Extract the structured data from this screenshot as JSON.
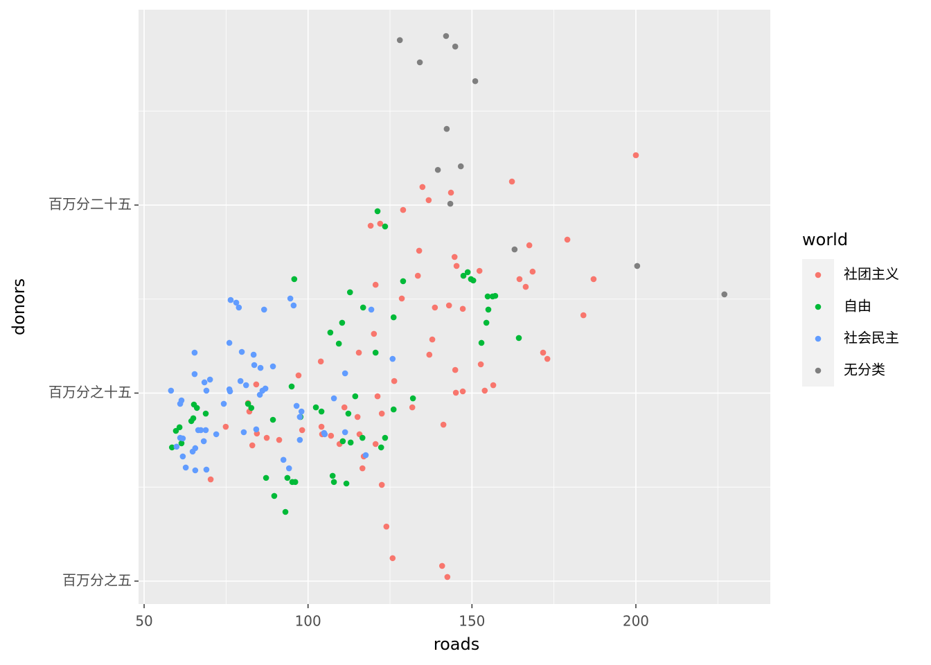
{
  "chart_data": {
    "type": "scatter",
    "x_label": "roads",
    "y_label": "donors",
    "legend_title": "world",
    "legend_position": "right",
    "grid": true,
    "xlim": [
      48.3,
      241.0
    ],
    "ylim": [
      3.78,
      35.39
    ],
    "xticks": [
      50,
      100,
      150,
      200
    ],
    "yticks": [
      {
        "value": 5,
        "label": "百万分之五"
      },
      {
        "value": 15,
        "label": "百万分之十五"
      },
      {
        "value": 25,
        "label": "百万分二十五"
      }
    ],
    "series": [
      {
        "name": "社团主义",
        "color": "#F8766D",
        "x": [
          200.0,
          162.2,
          134.9,
          143.6,
          136.8,
          129.0,
          119.1,
          122.0,
          133.9,
          144.7,
          145.3,
          152.3,
          168.5,
          167.5,
          179.1,
          133.5,
          120.6,
          164.5,
          166.4,
          187.1,
          128.6,
          138.7,
          143.0,
          147.2,
          184.0,
          137.9,
          120.1,
          115.5,
          137.0,
          103.9,
          152.7,
          171.7,
          173.0,
          126.3,
          144.9,
          97.1,
          156.5,
          84.2,
          153.9,
          147.2,
          145.1,
          121.2,
          131.8,
          81.7,
          82.1,
          111.1,
          115.1,
          122.5,
          141.3,
          74.9,
          104.1,
          104.3,
          98.2,
          107.0,
          84.4,
          87.4,
          91.2,
          109.6,
          115.7,
          120.6,
          83.0,
          117.0,
          116.6,
          122.5,
          70.3,
          123.9,
          125.8,
          140.9,
          142.5
        ],
        "values": [
          27.65,
          26.25,
          25.96,
          25.66,
          25.26,
          24.74,
          23.9,
          24.01,
          22.57,
          22.24,
          21.76,
          21.5,
          21.46,
          22.86,
          23.16,
          21.24,
          20.76,
          21.06,
          20.65,
          21.06,
          20.03,
          19.55,
          19.66,
          19.48,
          19.14,
          17.85,
          18.15,
          17.15,
          17.04,
          16.68,
          16.53,
          17.15,
          16.82,
          15.64,
          16.23,
          15.94,
          15.42,
          15.46,
          15.13,
          15.09,
          15.02,
          14.83,
          14.24,
          14.47,
          14.02,
          14.24,
          13.73,
          13.91,
          13.32,
          13.21,
          13.21,
          12.81,
          13.03,
          12.73,
          12.85,
          12.62,
          12.51,
          12.29,
          12.81,
          12.29,
          12.22,
          11.63,
          11.0,
          10.12,
          10.41,
          7.9,
          6.22,
          5.81,
          5.22
        ]
      },
      {
        "name": "自由",
        "color": "#00BA38",
        "x": [
          121.2,
          123.5,
          95.8,
          129.0,
          112.8,
          148.7,
          147.4,
          149.7,
          150.4,
          154.8,
          156.3,
          157.1,
          116.8,
          155.0,
          126.1,
          110.4,
          154.4,
          106.8,
          109.4,
          152.9,
          164.3,
          120.6,
          95.0,
          132.0,
          114.4,
          102.4,
          104.1,
          126.1,
          112.3,
          97.7,
          89.3,
          59.7,
          60.8,
          64.4,
          65.0,
          66.1,
          65.2,
          68.8,
          81.7,
          82.7,
          110.6,
          113.0,
          116.6,
          123.5,
          122.3,
          61.4,
          58.5,
          107.5,
          107.9,
          111.7,
          87.2,
          93.7,
          95.2,
          96.1,
          89.7,
          93.1
        ],
        "values": [
          24.67,
          23.86,
          21.06,
          20.95,
          20.36,
          21.43,
          21.24,
          21.06,
          20.99,
          20.14,
          20.14,
          20.17,
          19.55,
          19.44,
          19.03,
          18.74,
          18.74,
          18.22,
          17.63,
          17.67,
          17.93,
          17.15,
          15.35,
          14.72,
          14.83,
          14.24,
          14.02,
          14.13,
          13.91,
          13.73,
          13.58,
          12.99,
          13.18,
          13.51,
          13.66,
          14.21,
          14.39,
          13.91,
          14.43,
          14.21,
          12.44,
          12.37,
          12.62,
          12.62,
          12.11,
          12.33,
          12.11,
          10.6,
          10.27,
          10.19,
          10.49,
          10.49,
          10.27,
          10.27,
          9.53,
          8.68
        ]
      },
      {
        "name": "社会民主",
        "color": "#619CFF",
        "x": [
          76.4,
          78.1,
          78.9,
          86.6,
          94.6,
          95.6,
          119.3,
          76.0,
          65.4,
          79.8,
          83.4,
          83.6,
          85.5,
          89.3,
          125.8,
          65.4,
          111.3,
          70.1,
          68.4,
          79.4,
          81.1,
          58.2,
          76.0,
          76.2,
          69.0,
          87.0,
          86.1,
          85.3,
          61.4,
          61.0,
          74.3,
          96.5,
          107.9,
          98.0,
          97.5,
          67.3,
          66.5,
          68.8,
          72.0,
          80.4,
          84.2,
          104.9,
          111.3,
          105.1,
          61.0,
          61.8,
          68.2,
          59.9,
          65.6,
          64.8,
          61.8,
          117.6,
          92.5,
          94.2,
          62.7,
          65.6,
          69.0,
          97.5
        ],
        "values": [
          19.95,
          19.81,
          19.55,
          19.44,
          20.03,
          19.66,
          19.44,
          17.67,
          17.15,
          17.19,
          17.04,
          16.49,
          16.34,
          16.42,
          16.82,
          16.01,
          16.05,
          15.72,
          15.57,
          15.64,
          15.42,
          15.13,
          15.2,
          15.09,
          15.13,
          15.24,
          15.13,
          14.91,
          14.61,
          14.43,
          14.43,
          14.32,
          14.72,
          14.02,
          13.73,
          13.03,
          13.03,
          13.03,
          12.81,
          12.92,
          13.07,
          12.88,
          12.92,
          12.81,
          12.62,
          12.59,
          12.44,
          12.15,
          12.07,
          11.89,
          11.63,
          11.7,
          11.45,
          11.0,
          11.04,
          10.89,
          10.93,
          12.51
        ]
      },
      {
        "name": "无分类",
        "color": "#7F7F7F",
        "x": [
          128.0,
          142.1,
          144.9,
          134.1,
          151.0,
          142.3,
          139.6,
          146.6,
          143.4,
          163.0,
          200.4,
          227.0
        ],
        "values": [
          33.77,
          33.99,
          33.43,
          32.59,
          31.59,
          29.05,
          26.87,
          27.06,
          25.07,
          22.64,
          21.76,
          20.25
        ]
      }
    ]
  }
}
